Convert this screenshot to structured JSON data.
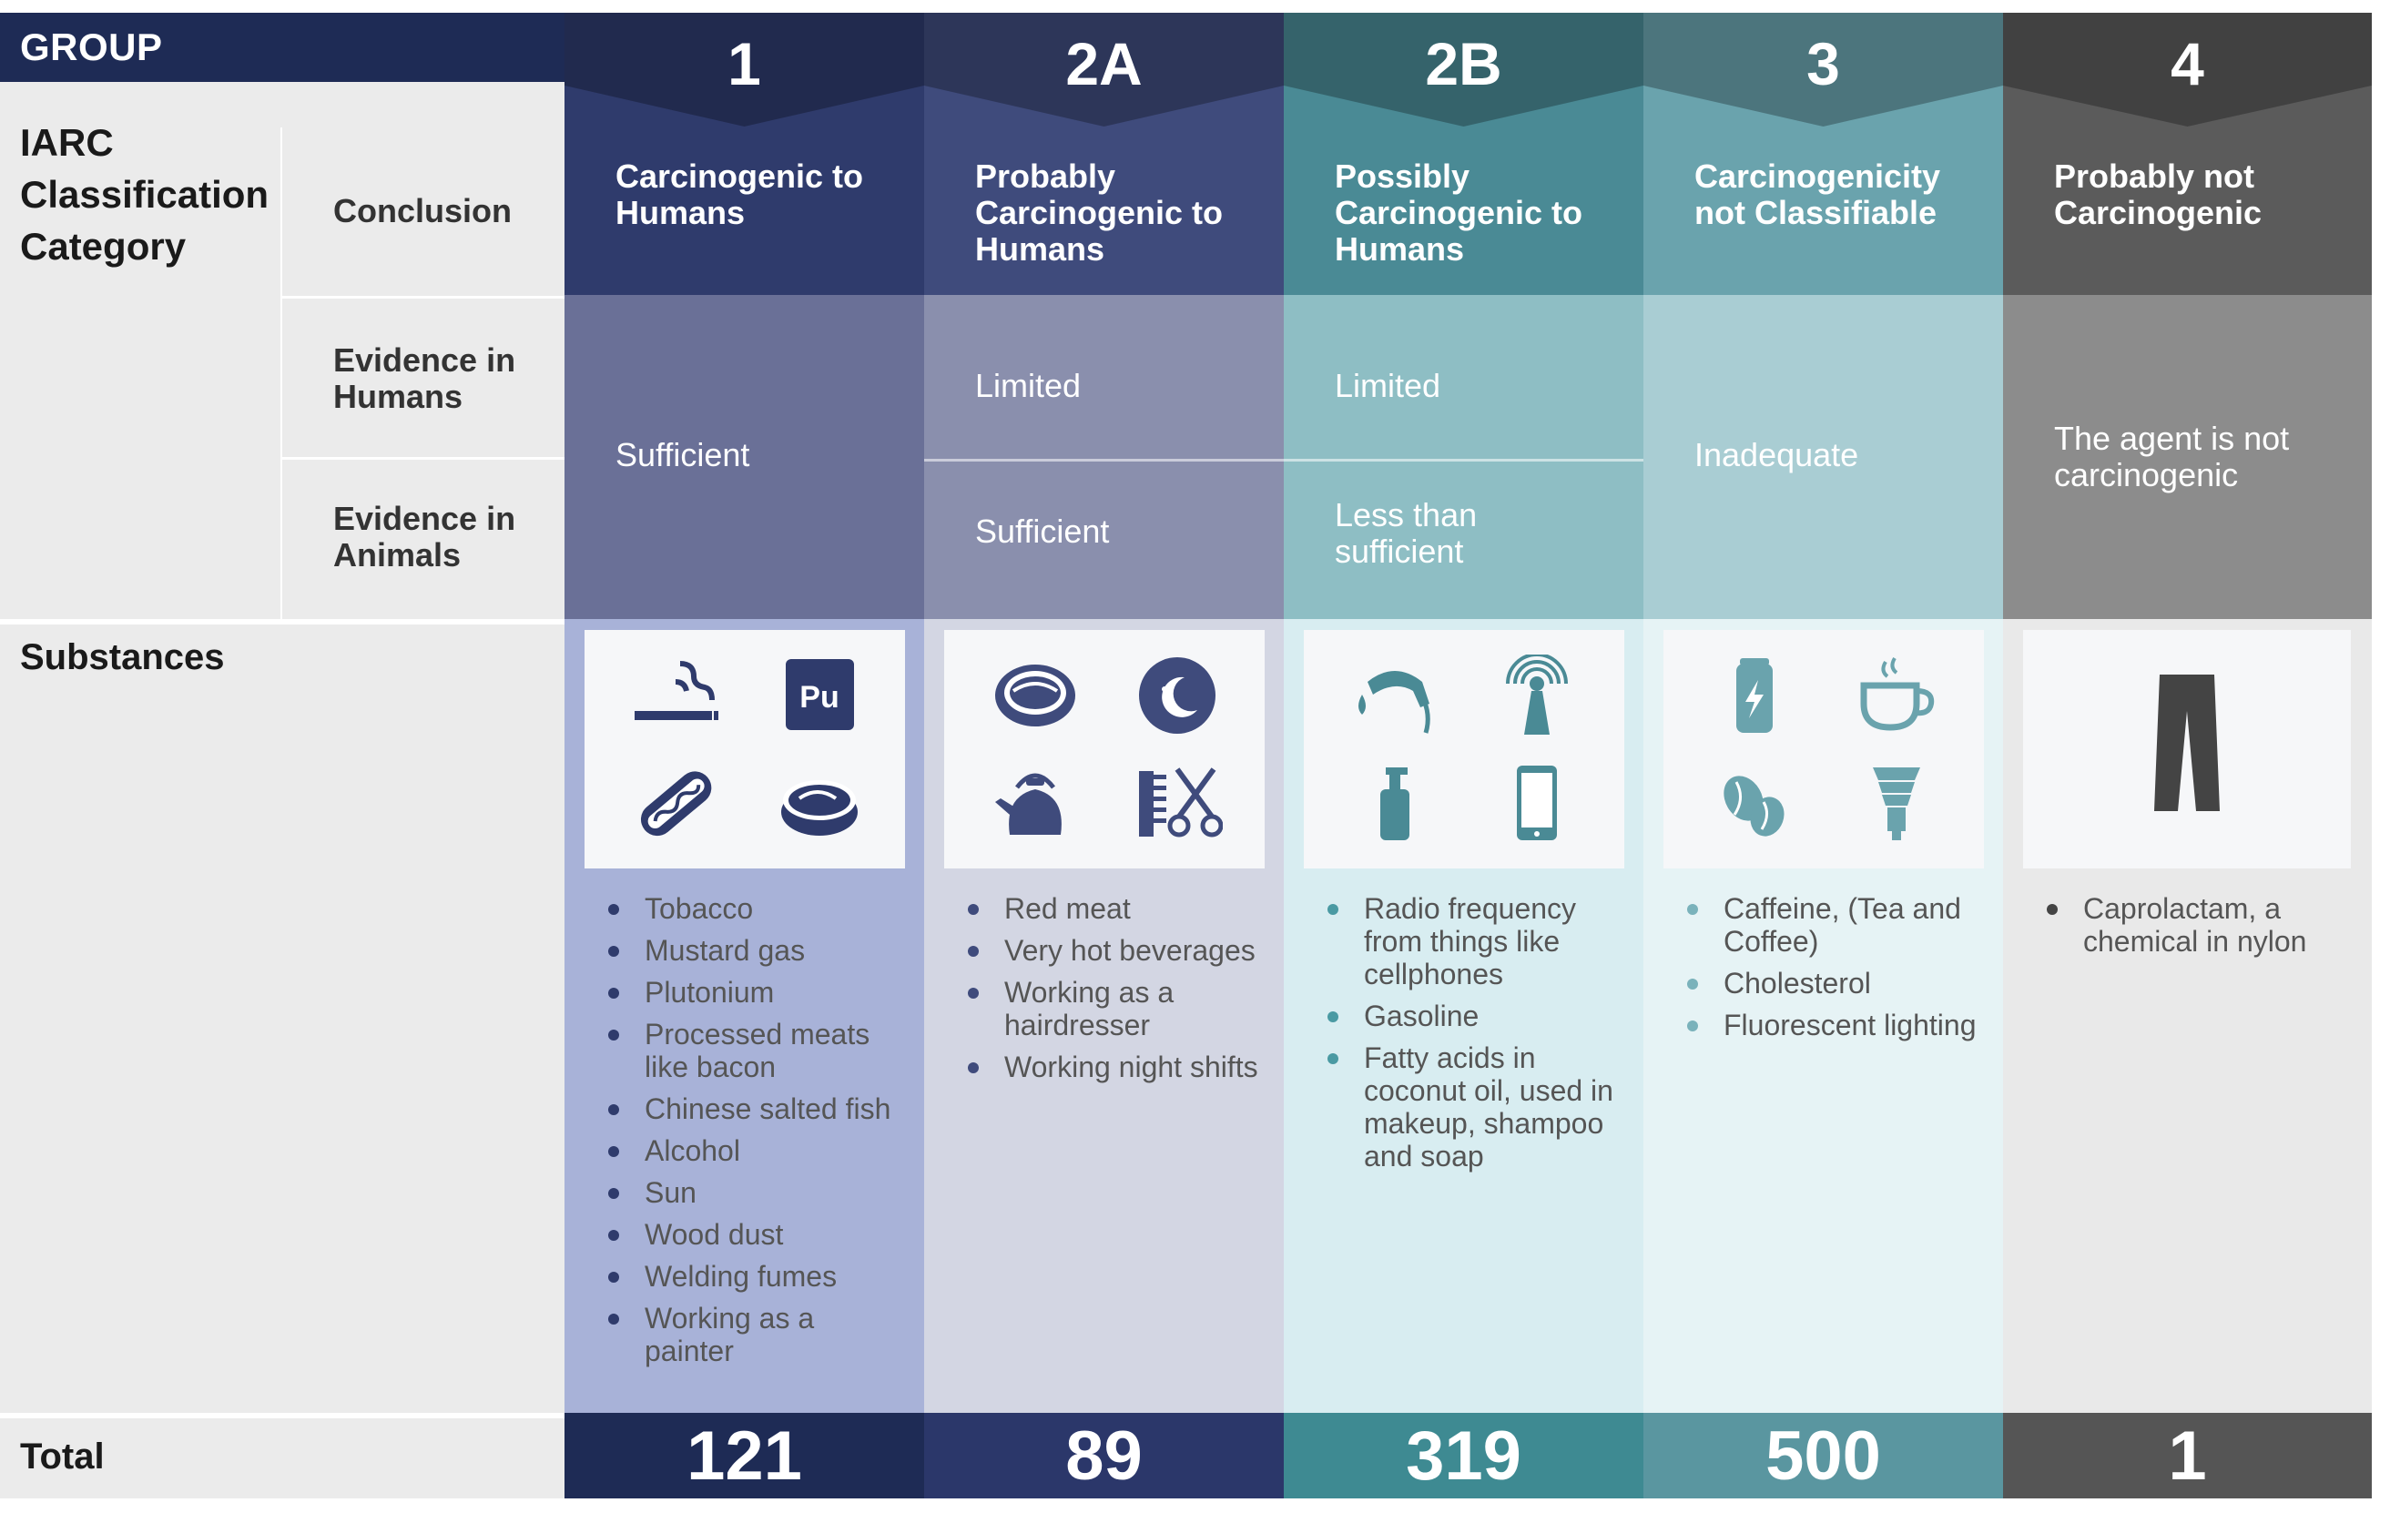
{
  "header": {
    "group_label": "GROUP",
    "category_label": "IARC Classification Category",
    "conclusion_label": "Conclusion",
    "evidence_humans_label": "Evidence in Humans",
    "evidence_animals_label": "Evidence in Animals",
    "substances_label": "Substances",
    "total_label": "Total"
  },
  "columns": [
    {
      "group": "1",
      "conclusion": "Carcinogenic to Humans",
      "evidence_combined": "Sufficient",
      "substances": [
        "Tobacco",
        "Mustard gas",
        "Plutonium",
        "Processed meats like bacon",
        "Chinese salted fish",
        "Alcohol",
        "Sun",
        "Wood dust",
        "Welding fumes",
        "Working as a painter"
      ],
      "total": "121",
      "icons": [
        "smoking-cigarette-icon",
        "plutonium-pu-icon",
        "hot-dog-icon",
        "canned-fish-icon"
      ],
      "colors": {
        "head": "#2f3b6c",
        "evidence": "#6a7097",
        "substances": "#a8b2d8",
        "total": "#1e2b55",
        "dot": "#2f3b6c"
      }
    },
    {
      "group": "2A",
      "conclusion": "Probably Carcinogenic to Humans",
      "evidence_humans": "Limited",
      "evidence_animals": "Sufficient",
      "substances": [
        "Red meat",
        "Very hot beverages",
        "Working as a hairdresser",
        "Working night shifts"
      ],
      "total": "89",
      "icons": [
        "steak-icon",
        "night-moon-icon",
        "kettle-icon",
        "comb-scissors-icon"
      ],
      "colors": {
        "head": "#3f4b7c",
        "evidence": "#8a8fad",
        "substances": "#d3d6e3",
        "total": "#2b376a",
        "dot": "#3f4b7c"
      }
    },
    {
      "group": "2B",
      "conclusion": "Possibly Carcinogenic to Humans",
      "evidence_humans": "Limited",
      "evidence_animals": "Less than sufficient",
      "substances": [
        "Radio frequency from things like cellphones",
        "Gasoline",
        "Fatty acids in coconut oil, used in makeup, shampoo and soap"
      ],
      "total": "319",
      "icons": [
        "fuel-nozzle-icon",
        "radio-antenna-icon",
        "soap-bottle-icon",
        "cellphone-icon"
      ],
      "colors": {
        "head": "#4a8a95",
        "evidence": "#8ebec4",
        "substances": "#d8edf1",
        "total": "#3e8a92",
        "dot": "#4a9aa3"
      }
    },
    {
      "group": "3",
      "conclusion": "Carcinogenicity not Classifiable",
      "evidence_combined": "Inadequate",
      "substances": [
        "Caffeine, (Tea and Coffee)",
        "Cholesterol",
        "Fluorescent lighting"
      ],
      "total": "500",
      "icons": [
        "energy-drink-can-icon",
        "coffee-cup-icon",
        "coffee-beans-icon",
        "fluorescent-bulb-icon"
      ],
      "colors": {
        "head": "#6aa3ad",
        "evidence": "#a9cdd3",
        "substances": "#e6f3f5",
        "total": "#5a96a0",
        "dot": "#7ab2bb"
      }
    },
    {
      "group": "4",
      "conclusion": "Probably not Carcinogenic",
      "evidence_combined": "The agent is not carcinogenic",
      "substances": [
        "Caprolactam, a chemical in nylon"
      ],
      "total": "1",
      "icons": [
        "trousers-icon"
      ],
      "colors": {
        "head": "#5b5b5b",
        "evidence": "#8c8c8c",
        "substances": "#e9e9e9",
        "total": "#555555",
        "dot": "#444444"
      }
    }
  ]
}
